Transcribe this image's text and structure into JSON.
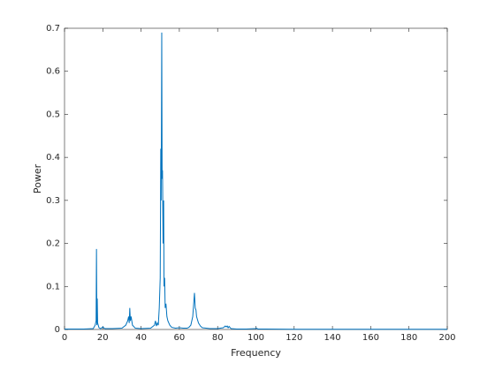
{
  "chart_data": {
    "type": "line",
    "xlabel": "Frequency",
    "ylabel": "Power",
    "x": [
      0,
      5,
      10,
      15,
      16,
      16.5,
      16.7,
      16.9,
      17.1,
      17.3,
      18,
      19,
      20,
      21,
      25,
      30,
      32,
      33,
      33.5,
      33.8,
      34.1,
      34.4,
      34.8,
      35.5,
      37,
      40,
      45,
      47,
      47.5,
      48,
      48.5,
      49,
      49.5,
      50,
      50.3,
      50.5,
      50.8,
      51,
      51.2,
      51.5,
      51.8,
      52,
      52.3,
      52.6,
      53,
      53.5,
      54,
      55,
      56,
      58,
      60,
      62,
      64,
      65,
      66,
      67,
      67.5,
      67.9,
      68.3,
      68.7,
      69,
      70,
      71,
      72,
      74,
      76,
      80,
      83,
      84,
      84.5,
      85,
      85.5,
      86,
      87,
      90,
      95,
      100,
      100.5,
      101,
      105,
      120,
      150,
      200
    ],
    "series": [
      {
        "name": "Power",
        "color": "#0072bd",
        "values": [
          0.001,
          0.001,
          0.001,
          0.002,
          0.01,
          0.02,
          0.187,
          0.01,
          0.072,
          0.015,
          0.004,
          0.002,
          0.006,
          0.002,
          0.002,
          0.003,
          0.01,
          0.02,
          0.03,
          0.015,
          0.05,
          0.02,
          0.03,
          0.01,
          0.003,
          0.002,
          0.003,
          0.01,
          0.02,
          0.008,
          0.015,
          0.01,
          0.05,
          0.12,
          0.42,
          0.3,
          0.69,
          0.35,
          0.37,
          0.2,
          0.3,
          0.1,
          0.12,
          0.05,
          0.06,
          0.03,
          0.02,
          0.01,
          0.005,
          0.003,
          0.004,
          0.003,
          0.003,
          0.005,
          0.01,
          0.03,
          0.06,
          0.085,
          0.05,
          0.045,
          0.03,
          0.015,
          0.008,
          0.004,
          0.003,
          0.002,
          0.002,
          0.004,
          0.008,
          0.006,
          0.008,
          0.004,
          0.007,
          0.002,
          0.001,
          0.001,
          0.002,
          0.003,
          0.001,
          0.001,
          0.0005,
          0.0005,
          0.0005
        ]
      }
    ],
    "xlim": [
      0,
      200
    ],
    "xticks": [
      0,
      20,
      40,
      60,
      80,
      100,
      120,
      140,
      160,
      180,
      200
    ],
    "ylim": [
      0,
      0.7
    ],
    "yticks": [
      0,
      0.1,
      0.2,
      0.3,
      0.4,
      0.5,
      0.6,
      0.7
    ]
  }
}
